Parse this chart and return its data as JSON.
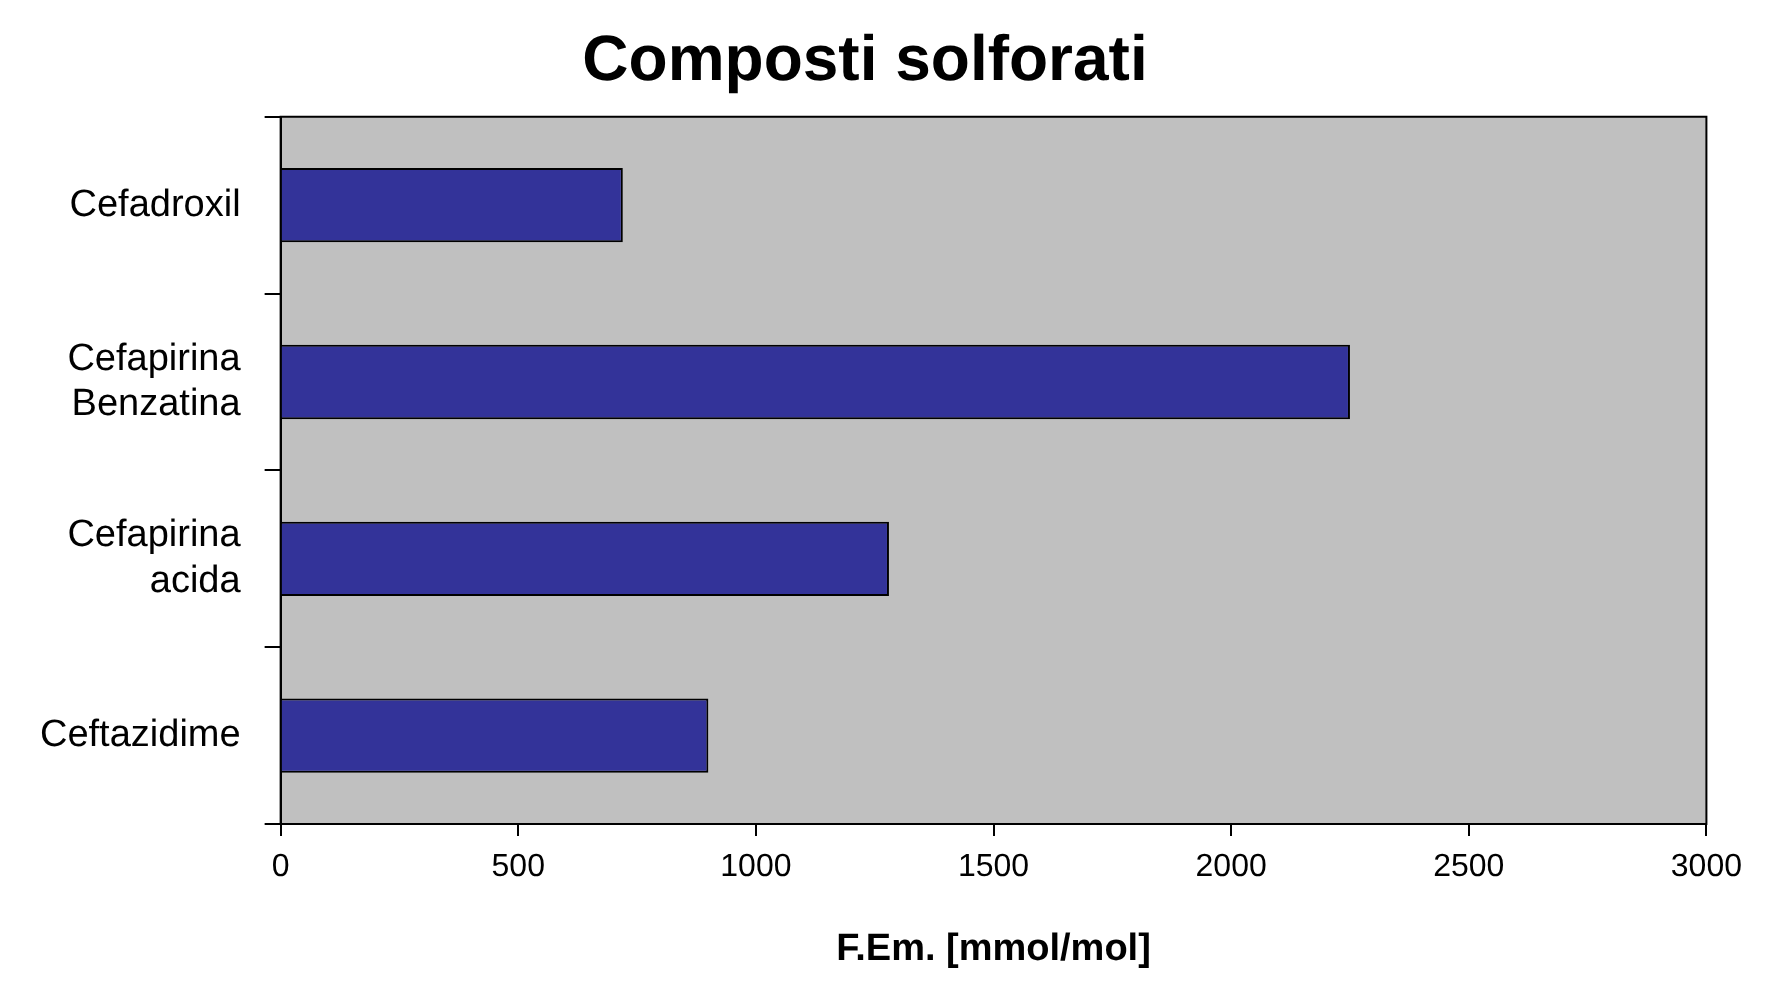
{
  "chart_data": {
    "type": "bar",
    "orientation": "horizontal",
    "title": "Composti solforati",
    "xlabel": "F.Em. [mmol/mol]",
    "categories": [
      "Cefadroxil",
      "Cefapirina Benzatina",
      "Cefapirina acida",
      "Ceftazidime"
    ],
    "values": [
      720,
      2250,
      1280,
      900
    ],
    "color": "#333399",
    "xlim": [
      0,
      3000
    ],
    "xticks": [
      0,
      500,
      1000,
      1500,
      2000,
      2500,
      3000
    ],
    "grid": false,
    "legend": false
  }
}
